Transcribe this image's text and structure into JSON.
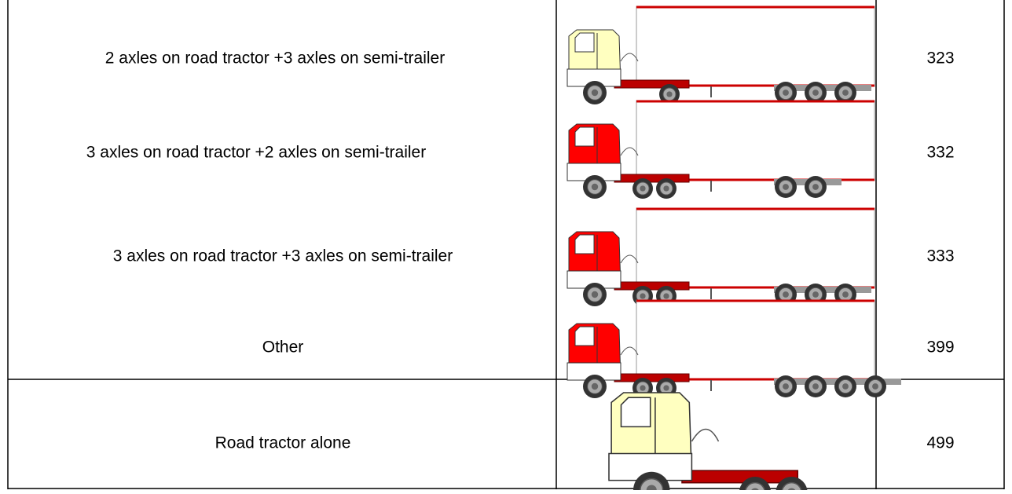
{
  "table": {
    "rows": [
      {
        "label": "2 axles on road tractor +3 axles on semi-trailer",
        "code": "323"
      },
      {
        "label": "3 axles on road tractor +2 axles on semi-trailer",
        "code": "332"
      },
      {
        "label": "3 axles on road tractor +3 axles on semi-trailer",
        "code": "333"
      },
      {
        "label": "Other",
        "code": "399"
      },
      {
        "label": "Road tractor alone",
        "code": "499"
      }
    ]
  }
}
